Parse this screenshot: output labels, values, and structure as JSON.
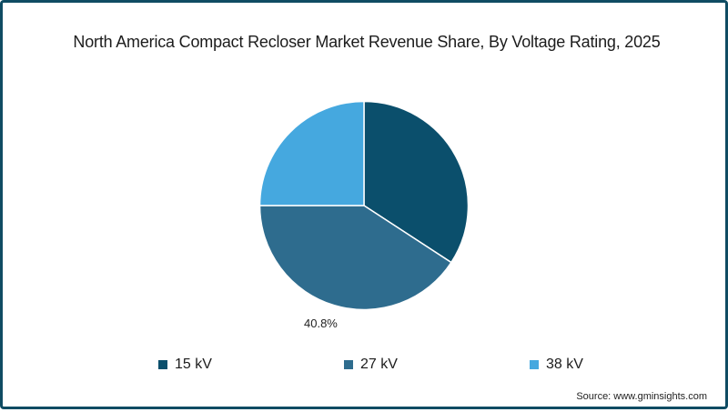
{
  "chart_data": {
    "type": "pie",
    "title": "North America Compact Recloser Market Revenue Share, By Voltage Rating, 2025",
    "categories": [
      "15 kV",
      "27 kV",
      "38 kV"
    ],
    "values": [
      34.2,
      40.8,
      25.0
    ],
    "unit": "%",
    "colors": [
      "#0b4f6c",
      "#2e6c8e",
      "#45a8df"
    ],
    "data_labels": [
      {
        "category": "27 kV",
        "text": "40.8%"
      }
    ],
    "start_angle_deg": 0,
    "direction": "clockwise",
    "legend_position": "bottom"
  },
  "title": "North America Compact Recloser Market Revenue Share, By Voltage Rating, 2025",
  "legend": [
    {
      "label": "15 kV",
      "color": "#0b4f6c"
    },
    {
      "label": "27 kV",
      "color": "#2e6c8e"
    },
    {
      "label": "38 kV",
      "color": "#45a8df"
    }
  ],
  "labels": {
    "slice_27kv": "40.8%"
  },
  "source": "Source: www.gminsights.com",
  "colors": {
    "border": "#0f4c63",
    "background": "#ffffff"
  }
}
